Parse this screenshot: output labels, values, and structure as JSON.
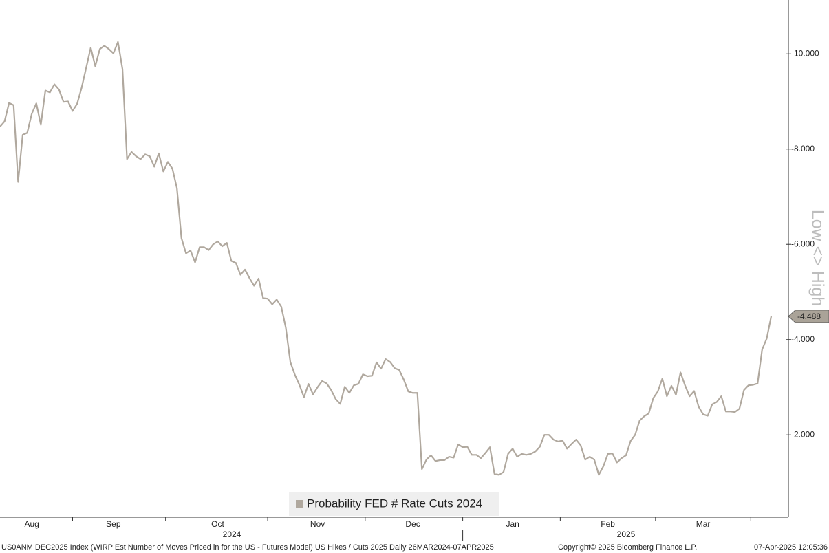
{
  "chart_data": {
    "type": "line",
    "legend": "Probability FED # Rate Cuts 2024",
    "y_axis_label": "Low <> High",
    "color": "#b0a89e",
    "categories": [
      null,
      null,
      null,
      null,
      null,
      null,
      null,
      "Aug",
      null,
      null,
      null,
      null,
      null,
      null,
      null,
      null,
      null,
      null,
      null,
      null,
      null,
      null,
      null,
      null,
      null,
      "Sep",
      null,
      null,
      null,
      null,
      null,
      null,
      null,
      null,
      null,
      null,
      null,
      null,
      null,
      null,
      null,
      null,
      null,
      null,
      null,
      null,
      null,
      null,
      "Oct",
      null,
      null,
      null,
      null,
      null,
      null,
      null,
      null,
      null,
      null,
      null,
      null,
      null,
      null,
      null,
      null,
      null,
      null,
      null,
      null,
      null,
      "Nov",
      null,
      null,
      null,
      null,
      null,
      null,
      null,
      null,
      null,
      null,
      null,
      null,
      null,
      null,
      null,
      null,
      null,
      null,
      null,
      null,
      "Dec",
      null,
      null,
      null,
      null,
      null,
      null,
      null,
      null,
      null,
      null,
      null,
      null,
      null,
      null,
      null,
      null,
      null,
      null,
      null,
      null,
      null,
      "Jan",
      null,
      null,
      null,
      null,
      null,
      null,
      null,
      null,
      null,
      null,
      null,
      null,
      null,
      null,
      null,
      null,
      null,
      null,
      null,
      null,
      "Feb",
      null,
      null,
      null,
      null,
      null,
      null,
      null,
      null,
      null,
      null,
      null,
      null,
      null,
      null,
      null,
      null,
      null,
      null,
      null,
      null,
      "Mar",
      null,
      null,
      null,
      null,
      null,
      null,
      null,
      null,
      null,
      null,
      null,
      null,
      null,
      null,
      null
    ],
    "values": [
      -8.47,
      -8.58,
      -8.97,
      -8.92,
      -7.31,
      -8.3,
      -8.34,
      -8.74,
      -8.96,
      -8.51,
      -9.23,
      -9.19,
      -9.36,
      -9.25,
      -8.99,
      -9.0,
      -8.8,
      -8.95,
      -9.29,
      -9.71,
      -10.13,
      -9.74,
      -10.1,
      -10.17,
      -10.1,
      -10.01,
      -10.25,
      -9.68,
      -7.79,
      -7.94,
      -7.85,
      -7.79,
      -7.89,
      -7.85,
      -7.63,
      -7.91,
      -7.53,
      -7.73,
      -7.59,
      -7.18,
      -6.13,
      -5.81,
      -5.87,
      -5.62,
      -5.94,
      -5.94,
      -5.88,
      -6.0,
      -6.06,
      -5.96,
      -6.03,
      -5.65,
      -5.61,
      -5.36,
      -5.47,
      -5.29,
      -5.13,
      -5.28,
      -4.87,
      -4.86,
      -4.74,
      -4.84,
      -4.69,
      -4.25,
      -3.53,
      -3.26,
      -3.05,
      -2.79,
      -3.07,
      -2.85,
      -3.0,
      -3.13,
      -3.08,
      -2.94,
      -2.75,
      -2.65,
      -3.01,
      -2.88,
      -3.04,
      -3.07,
      -3.27,
      -3.23,
      -3.24,
      -3.52,
      -3.39,
      -3.59,
      -3.53,
      -3.4,
      -3.36,
      -3.16,
      -2.91,
      -2.88,
      -2.88,
      -1.28,
      -1.48,
      -1.57,
      -1.45,
      -1.47,
      -1.47,
      -1.54,
      -1.52,
      -1.8,
      -1.74,
      -1.75,
      -1.58,
      -1.58,
      -1.51,
      -1.62,
      -1.74,
      -1.18,
      -1.16,
      -1.22,
      -1.6,
      -1.71,
      -1.54,
      -1.6,
      -1.58,
      -1.6,
      -1.65,
      -1.75,
      -2.0,
      -2.0,
      -1.9,
      -1.86,
      -1.88,
      -1.71,
      -1.81,
      -1.9,
      -1.78,
      -1.48,
      -1.54,
      -1.48,
      -1.16,
      -1.34,
      -1.6,
      -1.61,
      -1.42,
      -1.51,
      -1.57,
      -1.87,
      -2.0,
      -2.3,
      -2.39,
      -2.45,
      -2.77,
      -2.91,
      -3.18,
      -2.81,
      -3.03,
      -2.84,
      -3.31,
      -3.04,
      -2.81,
      -2.92,
      -2.59,
      -2.43,
      -2.4,
      -2.64,
      -2.69,
      -2.81,
      -2.49,
      -2.49,
      -2.48,
      -2.55,
      -2.94,
      -3.04,
      -3.05,
      -3.08,
      -3.79,
      -4.02,
      -4.488
    ],
    "last_value_label": "-4.488",
    "years": [
      "2024",
      "2025"
    ],
    "ylim": [
      -0.27,
      -11.13
    ],
    "yticks": [
      {
        "value": -10,
        "label": "-10.000"
      },
      {
        "value": -8,
        "label": "-8.000"
      },
      {
        "value": -6,
        "label": "-6.000"
      },
      {
        "value": -4,
        "label": "-4.000"
      },
      {
        "value": -2,
        "label": "-2.000"
      }
    ],
    "footer": {
      "source": "US0ANM DEC2025 Index (WIRP Est Number of Moves Priced in for the US - Futures Model) US Hikes / Cuts 2025  Daily 26MAR2024-07APR2025",
      "copyright": "Copyright© 2025 Bloomberg Finance L.P.",
      "timestamp": "07-Apr-2025 12:05:36"
    }
  }
}
